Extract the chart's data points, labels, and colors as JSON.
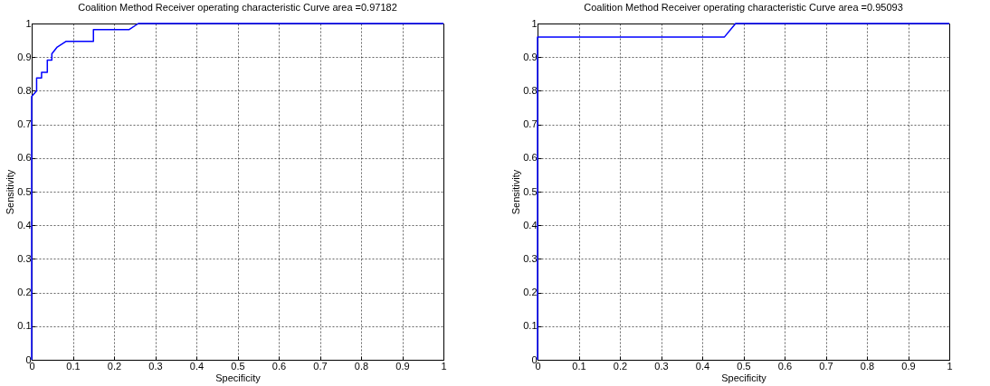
{
  "chart_data": [
    {
      "type": "line",
      "title": "Coalition Method Receiver operating characteristic Curve area =0.97182",
      "xlabel": "Specificity",
      "ylabel": "Sensitivity",
      "xlim": [
        0,
        1
      ],
      "ylim": [
        0,
        1
      ],
      "xticks": [
        0,
        0.1,
        0.2,
        0.3,
        0.4,
        0.5,
        0.6,
        0.7,
        0.8,
        0.9,
        1
      ],
      "yticks": [
        0,
        0.1,
        0.2,
        0.3,
        0.4,
        0.5,
        0.6,
        0.7,
        0.8,
        0.9,
        1
      ],
      "grid": true,
      "series": [
        {
          "color": "#0000ff",
          "x": [
            0,
            0,
            0.012,
            0.012,
            0.024,
            0.024,
            0.038,
            0.038,
            0.049,
            0.049,
            0.062,
            0.084,
            0.15,
            0.15,
            0.237,
            0.259,
            1
          ],
          "values": [
            0,
            0.783,
            0.8,
            0.838,
            0.838,
            0.855,
            0.855,
            0.891,
            0.891,
            0.91,
            0.93,
            0.947,
            0.947,
            0.982,
            0.982,
            1,
            1
          ]
        }
      ]
    },
    {
      "type": "line",
      "title": "Coalition Method Receiver operating characteristic Curve area =0.95093",
      "xlabel": "Specificity",
      "ylabel": "Sensitivity",
      "xlim": [
        0,
        1
      ],
      "ylim": [
        0,
        1
      ],
      "xticks": [
        0,
        0.1,
        0.2,
        0.3,
        0.4,
        0.5,
        0.6,
        0.7,
        0.8,
        0.9,
        1
      ],
      "yticks": [
        0,
        0.1,
        0.2,
        0.3,
        0.4,
        0.5,
        0.6,
        0.7,
        0.8,
        0.9,
        1
      ],
      "grid": true,
      "series": [
        {
          "color": "#0000ff",
          "x": [
            0,
            0,
            0.454,
            0.481,
            1
          ],
          "values": [
            0,
            0.96,
            0.96,
            1,
            1
          ]
        }
      ]
    }
  ]
}
